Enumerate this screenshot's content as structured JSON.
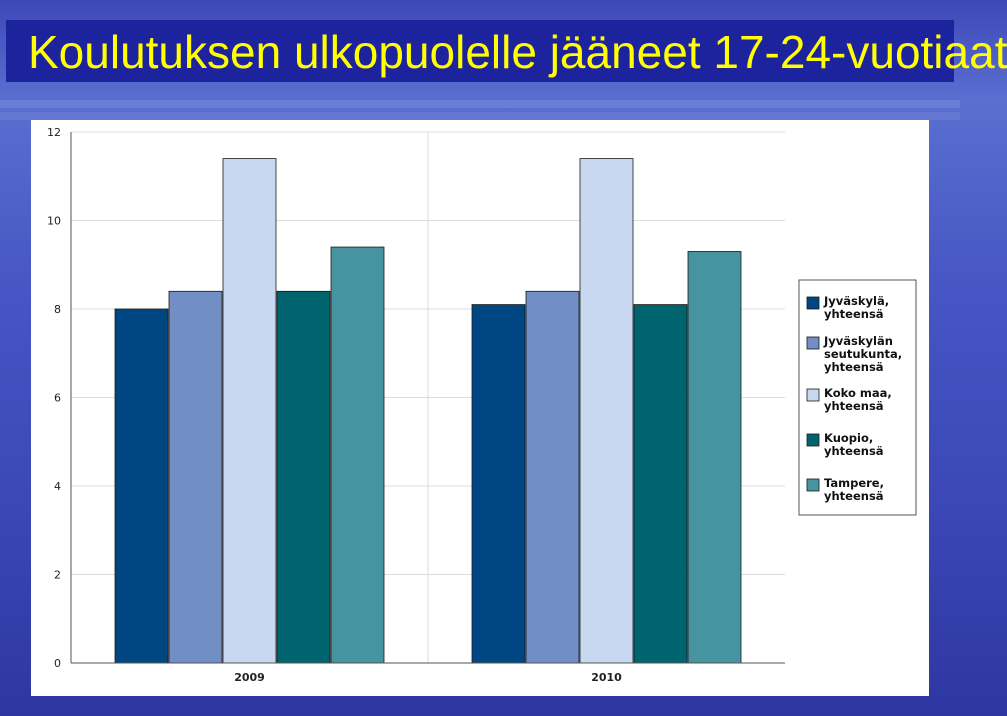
{
  "title": "Koulutuksen ulkopuolelle jääneet 17-24-vuotiaat",
  "chart_data": {
    "type": "bar",
    "categories": [
      "2009",
      "2010"
    ],
    "series": [
      {
        "name": "Jyväskylä, yhteensä",
        "label_lines": [
          "Jyväskylä,",
          "yhteensä"
        ],
        "color": "#004683",
        "values": [
          8.0,
          8.1
        ]
      },
      {
        "name": "Jyväskylän seutukunta, yhteensä",
        "label_lines": [
          "Jyväskylän",
          "seutukunta,",
          "yhteensä"
        ],
        "color": "#718fc4",
        "values": [
          8.4,
          8.4
        ]
      },
      {
        "name": "Koko maa, yhteensä",
        "label_lines": [
          "Koko maa,",
          "yhteensä"
        ],
        "color": "#c8d8f0",
        "values": [
          11.4,
          11.4
        ]
      },
      {
        "name": "Kuopio, yhteensä",
        "label_lines": [
          "Kuopio,",
          "yhteensä"
        ],
        "color": "#00646e",
        "values": [
          8.4,
          8.1
        ]
      },
      {
        "name": "Tampere, yhteensä",
        "label_lines": [
          "Tampere,",
          "yhteensä"
        ],
        "color": "#46949f",
        "values": [
          9.4,
          9.3
        ]
      }
    ],
    "yticks": [
      "0",
      "2",
      "4",
      "6",
      "8",
      "10",
      "12"
    ],
    "ylim": [
      0,
      12
    ],
    "grid": true,
    "legend_position": "right"
  }
}
